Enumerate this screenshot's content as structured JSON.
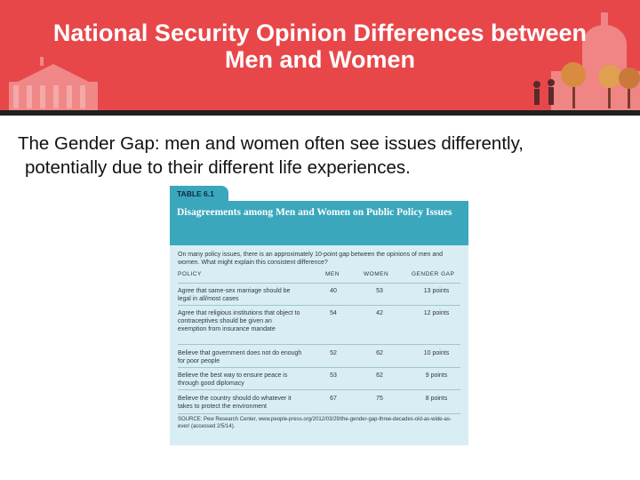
{
  "slide": {
    "title_line1": "National Security Opinion Differences between",
    "title_line2": "Men and Women",
    "subtitle_line1": "The Gender Gap: men and women often see issues differently,",
    "subtitle_line2": "potentially due to their different life experiences."
  },
  "table": {
    "label": "TABLE 6.1",
    "heading": "Disagreements among Men and Women on Public Policy Issues",
    "intro": "On many policy issues, there is an approximately 10-point gap between the opinions of men and women. What might explain this consistent difference?",
    "columns": {
      "policy": "POLICY",
      "men": "MEN",
      "women": "WOMEN",
      "gap": "GENDER GAP"
    },
    "rows": [
      {
        "policy": "Agree that same-sex marriage should be legal in all/most cases",
        "men": "40",
        "women": "53",
        "gap": "13 points"
      },
      {
        "policy": "Agree that religious institutions that object to contraceptives should be given an exemption from insurance mandate",
        "men": "54",
        "women": "42",
        "gap": "12 points"
      },
      {
        "policy": "Believe that government does not do enough for poor people",
        "men": "52",
        "women": "62",
        "gap": "10 points"
      },
      {
        "policy": "Believe the best way to ensure peace is through good diplomacy",
        "men": "53",
        "women": "62",
        "gap": "9 points"
      },
      {
        "policy": "Believe the country should do whatever it takes to protect the environment",
        "men": "67",
        "women": "75",
        "gap": "8 points"
      }
    ],
    "source": "SOURCE: Pew Research Center, www.people-press.org/2012/03/29/the-gender-gap-three-decades-old-as-wide-as-ever/ (accessed 2/5/14)."
  },
  "colors": {
    "banner": "#e8474a",
    "table_header": "#3aa7bd",
    "table_body": "#d9edf4"
  }
}
